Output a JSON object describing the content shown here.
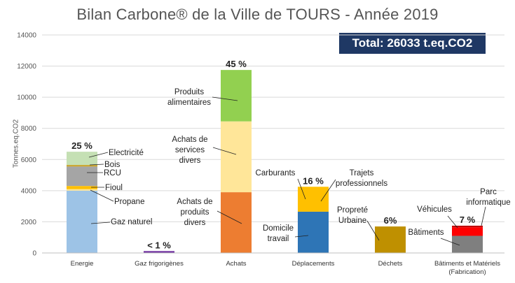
{
  "chart_data": {
    "type": "bar",
    "stacked": true,
    "title": "Bilan Carbone® de la Ville de TOURS - Année 2019",
    "total_label": "Total: 26033  t.eq.CO2",
    "ylabel": "Tonnes.eq.CO2",
    "xlabel": "",
    "ylim": [
      0,
      14000
    ],
    "yticks": [
      0,
      2000,
      4000,
      6000,
      8000,
      10000,
      12000,
      14000
    ],
    "grid": true,
    "categories": [
      {
        "label": "Energie",
        "pct": "25 %",
        "segments": [
          {
            "name": "Gaz naturel",
            "value": 4000,
            "color": "#9dc3e6"
          },
          {
            "name": "Propane",
            "value": 100,
            "color": "#ffe699"
          },
          {
            "name": "Fioul",
            "value": 200,
            "color": "#ffc000"
          },
          {
            "name": "RCU",
            "value": 1250,
            "color": "#a5a5a5"
          },
          {
            "name": "Bois",
            "value": 100,
            "color": "#c9a227"
          },
          {
            "name": "Electricité",
            "value": 850,
            "color": "#c5e0b4"
          }
        ]
      },
      {
        "label": "Gaz frigorigènes",
        "pct": "< 1 %",
        "segments": [
          {
            "name": "",
            "value": 120,
            "color": "#7030a0"
          }
        ]
      },
      {
        "label": "Achats",
        "pct": "45 %",
        "segments": [
          {
            "name": "Achats de produits divers",
            "value": 3900,
            "color": "#ed7d31"
          },
          {
            "name": "Achats de services divers",
            "value": 4550,
            "color": "#ffe699"
          },
          {
            "name": "Produits alimentaires",
            "value": 3300,
            "color": "#92d050"
          }
        ]
      },
      {
        "label": "Déplacements",
        "pct": "16 %",
        "segments": [
          {
            "name": "Domicile travail",
            "value": 2650,
            "color": "#2e75b6"
          },
          {
            "name": "Trajets professionnels",
            "value": 0,
            "color": "#2e75b6"
          },
          {
            "name": "Carburants",
            "value": 1600,
            "color": "#ffc000"
          }
        ]
      },
      {
        "label": "Déchets",
        "pct": "6%",
        "segments": [
          {
            "name": "Propreté Urbaine",
            "value": 1700,
            "color": "#bf9000"
          }
        ]
      },
      {
        "label": "Bâtiments et Matériels (Fabrication)",
        "label_lines": [
          "Bâtiments et Matériels",
          "(Fabrication)"
        ],
        "pct": "7 %",
        "segments": [
          {
            "name": "Bâtiments",
            "value": 1100,
            "color": "#7f7f7f"
          },
          {
            "name": "Véhicules",
            "value": 550,
            "color": "#ff0000"
          },
          {
            "name": "Parc informatique",
            "value": 100,
            "color": "#c00000"
          }
        ]
      }
    ]
  }
}
